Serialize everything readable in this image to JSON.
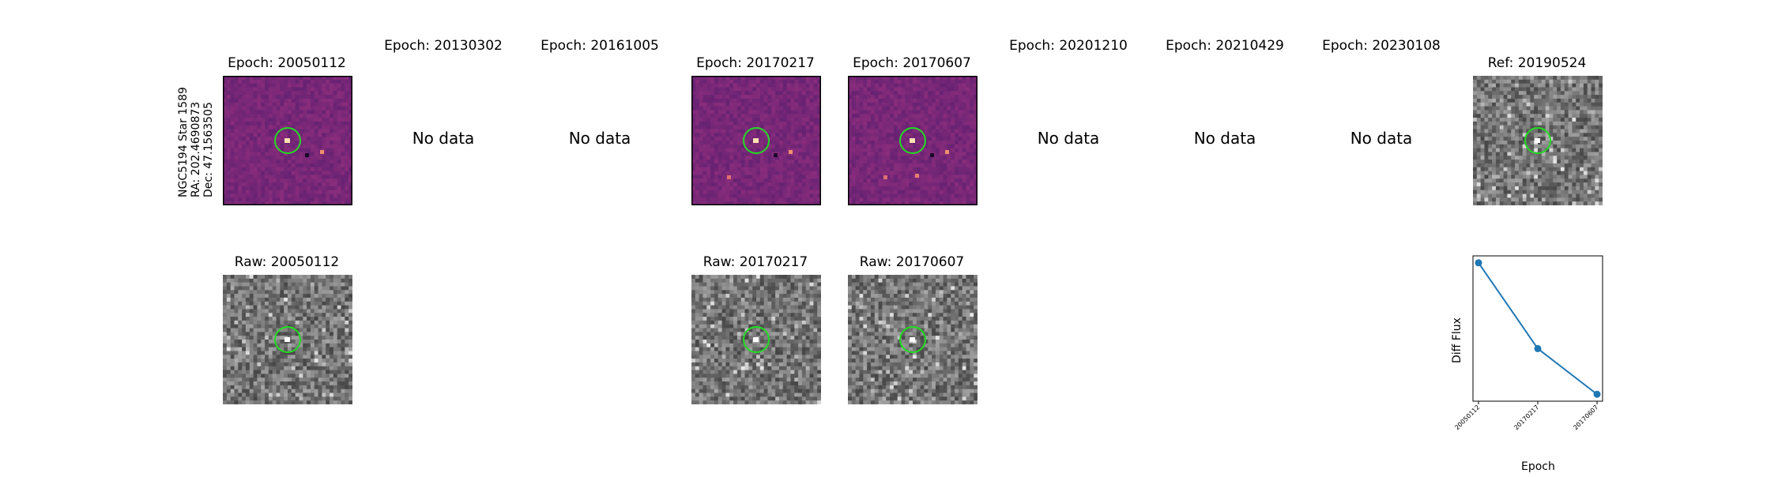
{
  "object_label": {
    "line1": "NGC5194 Star 1589",
    "line2": "RA: 202.4690873",
    "line3": "Dec: 47.1563505"
  },
  "top_row": [
    {
      "title": "Epoch: 20050112",
      "status": "image",
      "style": "diff"
    },
    {
      "title": "Epoch: 20130302",
      "status": "No data"
    },
    {
      "title": "Epoch: 20161005",
      "status": "No data"
    },
    {
      "title": "Epoch: 20170217",
      "status": "image",
      "style": "diff"
    },
    {
      "title": "Epoch: 20170607",
      "status": "image",
      "style": "diff"
    },
    {
      "title": "Epoch: 20201210",
      "status": "No data"
    },
    {
      "title": "Epoch: 20210429",
      "status": "No data"
    },
    {
      "title": "Epoch: 20230108",
      "status": "No data"
    },
    {
      "title": "Ref: 20190524",
      "status": "image",
      "style": "gray"
    }
  ],
  "bottom_row": [
    {
      "title": "Raw: 20050112"
    },
    {
      "title": "Raw: 20170217"
    },
    {
      "title": "Raw: 20170607"
    }
  ],
  "colors": {
    "circle": "#22dd22",
    "line": "#1f77b4",
    "diff_base": "#7a2d8c"
  },
  "chart_data": {
    "type": "line",
    "xlabel": "Epoch",
    "ylabel": "Diff Flux",
    "categories": [
      "20050112",
      "20170217",
      "20170607"
    ],
    "values": [
      1.0,
      0.38,
      0.05
    ],
    "ylim": [
      0.0,
      1.05
    ],
    "grid": false
  }
}
